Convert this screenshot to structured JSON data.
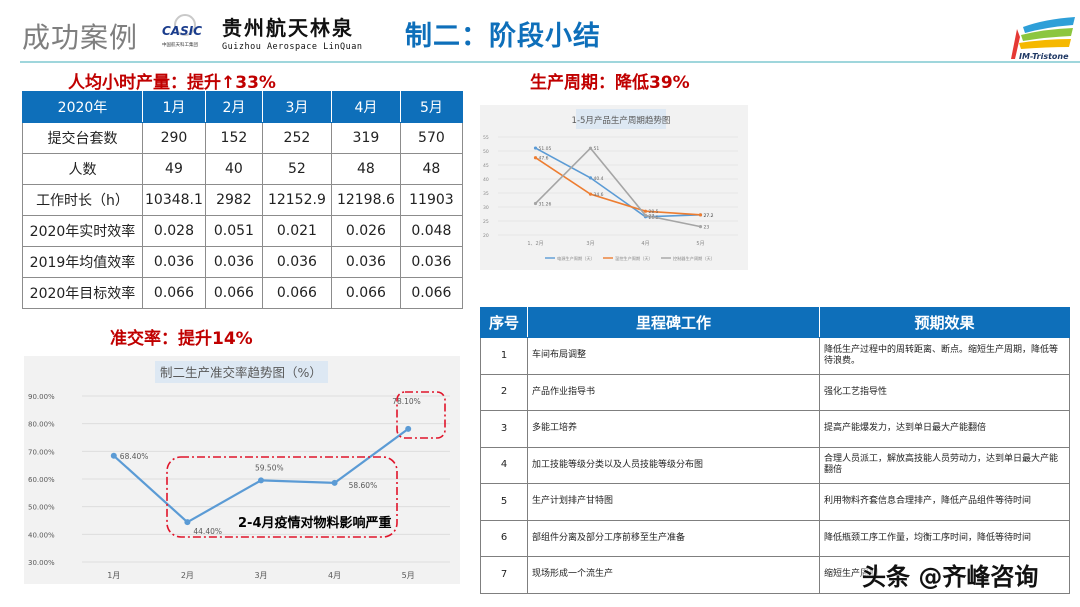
{
  "header": {
    "section": "成功案例",
    "cosic_mark": "CASIC",
    "cosic_sub": "中国航天科工集团",
    "company_cn": "贵州航天林泉",
    "company_en": "Guizhou Aerospace LinQuan",
    "page_title": "制二：阶段小结",
    "partner_logo": "IM-Tristone"
  },
  "efficiency": {
    "title": "人均小时产量：提升↑33%",
    "headers": [
      "2020年",
      "1月",
      "2月",
      "3月",
      "4月",
      "5月"
    ],
    "rows": [
      [
        "提交台套数",
        "290",
        "152",
        "252",
        "319",
        "570"
      ],
      [
        "人数",
        "49",
        "40",
        "52",
        "48",
        "48"
      ],
      [
        "工作时长（h）",
        "10348.1",
        "2982",
        "12152.9",
        "12198.6",
        "11903"
      ],
      [
        "2020年实时效率",
        "0.028",
        "0.051",
        "0.021",
        "0.026",
        "0.048"
      ],
      [
        "2019年均值效率",
        "0.036",
        "0.036",
        "0.036",
        "0.036",
        "0.036"
      ],
      [
        "2020年目标效率",
        "0.066",
        "0.066",
        "0.066",
        "0.066",
        "0.066"
      ]
    ]
  },
  "cycle": {
    "title": "生产周期：降低39%"
  },
  "rate": {
    "title": "准交率：提升14%",
    "annotation": "2-4月疫情对物料影响严重"
  },
  "milestones": {
    "headers": [
      "序号",
      "里程碑工作",
      "预期效果"
    ],
    "rows": [
      [
        "1",
        "车间布局调整",
        "降低生产过程中的周转距离、断点。缩短生产周期，降低等待浪费。"
      ],
      [
        "2",
        "产品作业指导书",
        "强化工艺指导性"
      ],
      [
        "3",
        "多能工培养",
        "提高产能爆发力，达到单日最大产能翻倍"
      ],
      [
        "4",
        "加工技能等级分类以及人员技能等级分布图",
        "合理人员派工，解放高技能人员劳动力，达到单日最大产能翻倍"
      ],
      [
        "5",
        "生产计划排产甘特图",
        "利用物料齐套信息合理排产，降低产品组件等待时间"
      ],
      [
        "6",
        "部组件分离及部分工序前移至生产准备",
        "降低瓶颈工序工作量，均衡工序时间，降低等待时间"
      ],
      [
        "7",
        "现场形成一个流生产",
        "缩短生产周期"
      ]
    ]
  },
  "watermark": "头条 @齐峰咨询",
  "colors": {
    "brand_blue": "#0e6fba",
    "accent_red": "#c00000",
    "series_blue": "#5b9bd5",
    "series_orange": "#ed7d31",
    "series_gray": "#a5a5a5"
  },
  "chart_data": [
    {
      "type": "line",
      "title": "1-5月产品生产周期趋势图",
      "categories": [
        "1、2月",
        "3月",
        "4月",
        "5月"
      ],
      "series": [
        {
          "name": "电源生产周期（天）",
          "values": [
            51.05,
            40.4,
            26.5,
            27.2
          ]
        },
        {
          "name": "温控生产周期（天）",
          "values": [
            47.6,
            34.6,
            28.5,
            27.2
          ]
        },
        {
          "name": "控制器生产周期（天）",
          "values": [
            31.26,
            51,
            27,
            23
          ]
        }
      ],
      "xlabel": "",
      "ylabel": "",
      "ylim": [
        20,
        55
      ],
      "yticks": [
        20,
        25,
        30,
        35,
        40,
        45,
        50,
        55
      ],
      "legend_position": "bottom",
      "grid": true
    },
    {
      "type": "line",
      "title": "制二生产准交率趋势图（%）",
      "categories": [
        "1月",
        "2月",
        "3月",
        "4月",
        "5月"
      ],
      "values": [
        68.4,
        44.4,
        59.5,
        58.6,
        78.1
      ],
      "value_labels": [
        "68.40%",
        "44.40%",
        "59.50%",
        "58.60%",
        "78.10%"
      ],
      "xlabel": "",
      "ylabel": "",
      "ylim": [
        30,
        90
      ],
      "yticks": [
        "30.00%",
        "40.00%",
        "50.00%",
        "60.00%",
        "70.00%",
        "80.00%",
        "90.00%"
      ],
      "annotations": [
        "2-4月疫情对物料影响严重"
      ],
      "grid": true,
      "legend_position": "none"
    }
  ]
}
